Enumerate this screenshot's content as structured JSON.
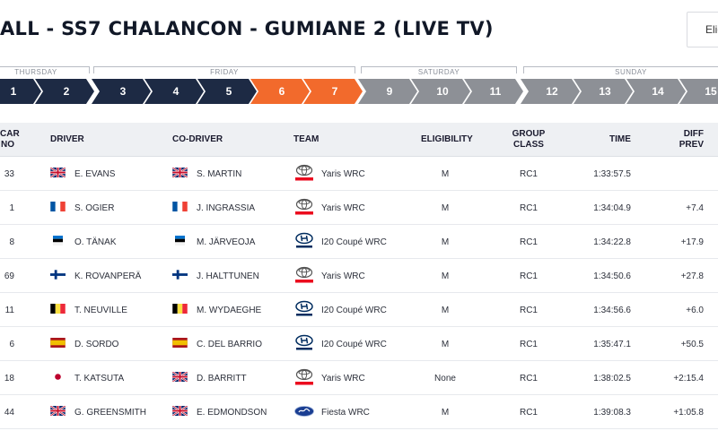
{
  "page": {
    "title": "ALL - SS7 CHALANCON - GUMIANE 2 (LIVE TV)",
    "eligibility_select": "Elig"
  },
  "days": [
    "THURSDAY",
    "FRIDAY",
    "SATURDAY",
    "SUNDAY"
  ],
  "stages": [
    "1",
    "2",
    "3",
    "4",
    "5",
    "6",
    "7",
    "9",
    "10",
    "11",
    "12",
    "13",
    "14",
    "15"
  ],
  "colors": {
    "navy": "#1d2a44",
    "orange": "#f26a2c",
    "grey": "#8d9096",
    "header_bg": "#eef0f3"
  },
  "table": {
    "headers": {
      "car_no_1": "CAR",
      "car_no_2": "NO",
      "driver": "DRIVER",
      "co_driver": "CO-DRIVER",
      "team": "TEAM",
      "eligibility": "ELIGIBILITY",
      "group_class_1": "GROUP",
      "group_class_2": "CLASS",
      "time": "TIME",
      "diff_prev_1": "DIFF",
      "diff_prev_2": "PREV"
    },
    "rows": [
      {
        "car_no": "33",
        "driver": "E. EVANS",
        "driver_flag": "gb",
        "co_driver": "S. MARTIN",
        "co_flag": "gb",
        "team_logo": "toyota",
        "team": "Yaris WRC",
        "eligibility": "M",
        "group_class": "RC1",
        "time": "1:33:57.5",
        "diff_prev": ""
      },
      {
        "car_no": "1",
        "driver": "S. OGIER",
        "driver_flag": "fr",
        "co_driver": "J. INGRASSIA",
        "co_flag": "fr",
        "team_logo": "toyota",
        "team": "Yaris WRC",
        "eligibility": "M",
        "group_class": "RC1",
        "time": "1:34:04.9",
        "diff_prev": "+7.4"
      },
      {
        "car_no": "8",
        "driver": "O. TÄNAK",
        "driver_flag": "ee",
        "co_driver": "M. JÄRVEOJA",
        "co_flag": "ee",
        "team_logo": "hyundai",
        "team": "I20 Coupé WRC",
        "eligibility": "M",
        "group_class": "RC1",
        "time": "1:34:22.8",
        "diff_prev": "+17.9"
      },
      {
        "car_no": "69",
        "driver": "K. ROVANPERÄ",
        "driver_flag": "fi",
        "co_driver": "J. HALTTUNEN",
        "co_flag": "fi",
        "team_logo": "toyota",
        "team": "Yaris WRC",
        "eligibility": "M",
        "group_class": "RC1",
        "time": "1:34:50.6",
        "diff_prev": "+27.8"
      },
      {
        "car_no": "11",
        "driver": "T. NEUVILLE",
        "driver_flag": "be",
        "co_driver": "M. WYDAEGHE",
        "co_flag": "be",
        "team_logo": "hyundai",
        "team": "I20 Coupé WRC",
        "eligibility": "M",
        "group_class": "RC1",
        "time": "1:34:56.6",
        "diff_prev": "+6.0"
      },
      {
        "car_no": "6",
        "driver": "D. SORDO",
        "driver_flag": "es",
        "co_driver": "C. DEL BARRIO",
        "co_flag": "es",
        "team_logo": "hyundai",
        "team": "I20 Coupé WRC",
        "eligibility": "M",
        "group_class": "RC1",
        "time": "1:35:47.1",
        "diff_prev": "+50.5"
      },
      {
        "car_no": "18",
        "driver": "T. KATSUTA",
        "driver_flag": "jp",
        "co_driver": "D. BARRITT",
        "co_flag": "gb",
        "team_logo": "toyota",
        "team": "Yaris WRC",
        "eligibility": "None",
        "group_class": "RC1",
        "time": "1:38:02.5",
        "diff_prev": "+2:15.4"
      },
      {
        "car_no": "44",
        "driver": "G. GREENSMITH",
        "driver_flag": "gb",
        "co_driver": "E. EDMONDSON",
        "co_flag": "gb",
        "team_logo": "ford",
        "team": "Fiesta WRC",
        "eligibility": "M",
        "group_class": "RC1",
        "time": "1:39:08.3",
        "diff_prev": "+1:05.8"
      }
    ]
  }
}
